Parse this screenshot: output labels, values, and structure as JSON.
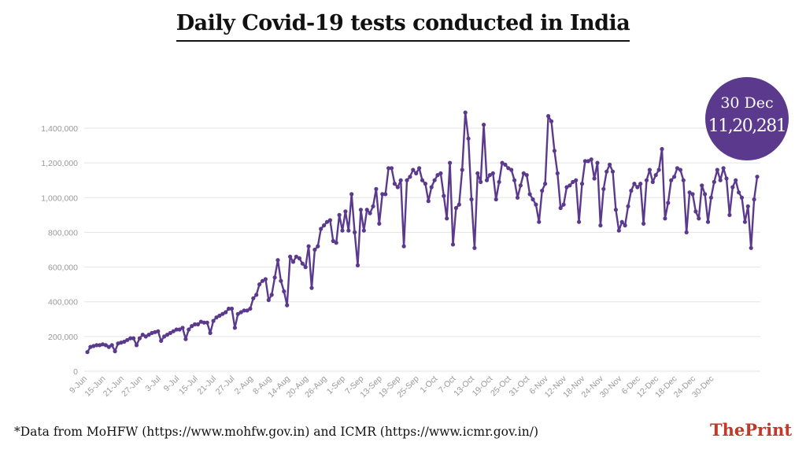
{
  "title": "Daily Covid-19 tests conducted in India",
  "badge": {
    "date": "30 Dec",
    "value": "11,20,281"
  },
  "footnote": "*Data from MoHFW (https://www.mohfw.gov.in) and ICMR (https://www.icmr.gov.in/)",
  "brand": {
    "the": "The",
    "print": "Print"
  },
  "colors": {
    "line": "#5b3a8e",
    "badge": "#5b3a8e",
    "brand": "#c0392b",
    "grid": "#e3e3e3",
    "tick": "#999999"
  },
  "chart_data": {
    "type": "line",
    "title": "Daily Covid-19 tests conducted in India",
    "xlabel": "",
    "ylabel": "",
    "ylim": [
      0,
      1400000
    ],
    "yticks": [
      {
        "value": 0,
        "label": "0"
      },
      {
        "value": 200000,
        "label": "200,000"
      },
      {
        "value": 400000,
        "label": "400,000"
      },
      {
        "value": 600000,
        "label": "600,000"
      },
      {
        "value": 800000,
        "label": "800,000"
      },
      {
        "value": 1000000,
        "label": "1,000,000"
      },
      {
        "value": 1200000,
        "label": "1,200,000"
      },
      {
        "value": 1400000,
        "label": "1,400,000"
      }
    ],
    "xticks": [
      "9-Jun",
      "15-Jun",
      "21-Jun",
      "27-Jun",
      "3-Jul",
      "9-Jul",
      "15-Jul",
      "21-Jul",
      "27-Jul",
      "2-Aug",
      "8-Aug",
      "14-Aug",
      "20-Aug",
      "26-Aug",
      "1-Sep",
      "7-Sep",
      "13-Sep",
      "19-Sep",
      "25-Sep",
      "1-Oct",
      "7-Oct",
      "13-Oct",
      "19-Oct",
      "25-Oct",
      "31-Oct",
      "6-Nov",
      "12-Nov",
      "18-Nov",
      "24-Nov",
      "30-Nov",
      "6-Dec",
      "12-Dec",
      "18-Dec",
      "24-Dec",
      "30-Dec"
    ],
    "grid": true,
    "legend": "none",
    "start_date": "9-Jun",
    "series": [
      {
        "values": [
          110000,
          140000,
          145000,
          150000,
          150000,
          155000,
          150000,
          140000,
          150000,
          115000,
          160000,
          165000,
          170000,
          180000,
          190000,
          190000,
          150000,
          190000,
          210000,
          200000,
          210000,
          220000,
          225000,
          230000,
          175000,
          200000,
          210000,
          220000,
          230000,
          240000,
          240000,
          250000,
          185000,
          240000,
          260000,
          270000,
          270000,
          285000,
          280000,
          280000,
          220000,
          290000,
          310000,
          320000,
          330000,
          340000,
          360000,
          360000,
          250000,
          330000,
          340000,
          350000,
          350000,
          360000,
          420000,
          440000,
          500000,
          520000,
          530000,
          410000,
          440000,
          540000,
          640000,
          520000,
          460000,
          380000,
          660000,
          630000,
          660000,
          650000,
          620000,
          600000,
          720000,
          480000,
          700000,
          720000,
          820000,
          840000,
          860000,
          870000,
          750000,
          740000,
          900000,
          810000,
          920000,
          810000,
          1020000,
          800000,
          610000,
          930000,
          810000,
          930000,
          910000,
          950000,
          1050000,
          850000,
          1020000,
          1020000,
          1170000,
          1170000,
          1080000,
          1060000,
          1100000,
          720000,
          1100000,
          1120000,
          1160000,
          1140000,
          1170000,
          1100000,
          1080000,
          980000,
          1060000,
          1100000,
          1130000,
          1140000,
          1010000,
          880000,
          1200000,
          730000,
          940000,
          960000,
          1160000,
          1490000,
          1340000,
          990000,
          710000,
          1140000,
          1090000,
          1420000,
          1100000,
          1130000,
          1140000,
          990000,
          1090000,
          1200000,
          1190000,
          1170000,
          1160000,
          1100000,
          1000000,
          1070000,
          1140000,
          1130000,
          1020000,
          990000,
          960000,
          860000,
          1040000,
          1080000,
          1470000,
          1440000,
          1270000,
          1140000,
          940000,
          960000,
          1060000,
          1070000,
          1090000,
          1100000,
          860000,
          1080000,
          1210000,
          1210000,
          1220000,
          1110000,
          1200000,
          840000,
          1050000,
          1150000,
          1190000,
          1150000,
          930000,
          810000,
          860000,
          840000,
          950000,
          1040000,
          1080000,
          1060000,
          1080000,
          850000,
          1100000,
          1160000,
          1090000,
          1130000,
          1160000,
          1280000,
          880000,
          970000,
          1100000,
          1120000,
          1170000,
          1160000,
          1100000,
          800000,
          1030000,
          1020000,
          920000,
          880000,
          1070000,
          1020000,
          860000,
          1000000,
          1090000,
          1160000,
          1100000,
          1170000,
          1110000,
          900000,
          1060000,
          1100000,
          1030000,
          1000000,
          860000,
          950000,
          710000,
          990000,
          1120281
        ]
      }
    ]
  }
}
